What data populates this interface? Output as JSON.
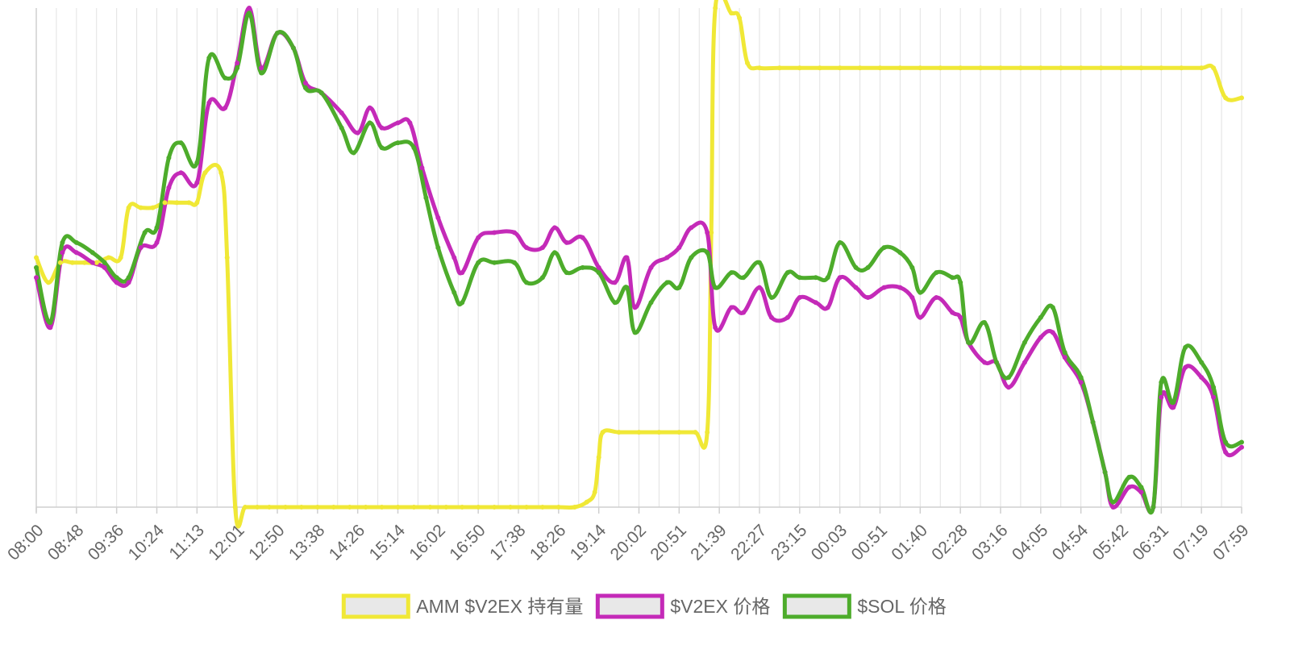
{
  "chart_data": {
    "type": "line",
    "title": "",
    "xlabel": "",
    "ylabel": "",
    "grid": {
      "vertical": true,
      "horizontal": false
    },
    "legend_position": "bottom-center",
    "x_tick_labels": [
      "08:00",
      "08:48",
      "09:36",
      "10:24",
      "11:13",
      "12:01",
      "12:50",
      "13:38",
      "14:26",
      "15:14",
      "16:02",
      "16:50",
      "17:38",
      "18:26",
      "19:14",
      "20:02",
      "20:51",
      "21:39",
      "22:27",
      "23:15",
      "00:03",
      "00:51",
      "01:40",
      "02:28",
      "03:16",
      "04:05",
      "04:54",
      "05:42",
      "06:31",
      "07:19",
      "07:59"
    ],
    "y_scale": "normalized 0-100 (no printed y axis)",
    "ylim": [
      0,
      100
    ],
    "series": [
      {
        "name": "AMM $V2EX 持有量",
        "color": "#f0e836",
        "legend_fill": "#e8e8e8",
        "points": [
          [
            0,
            50
          ],
          [
            0.3,
            45
          ],
          [
            0.6,
            49
          ],
          [
            0.9,
            49
          ],
          [
            1.2,
            49
          ],
          [
            1.5,
            49
          ],
          [
            1.8,
            50
          ],
          [
            2.1,
            50
          ],
          [
            2.3,
            60
          ],
          [
            2.6,
            60
          ],
          [
            2.9,
            60
          ],
          [
            3.2,
            61
          ],
          [
            3.5,
            61
          ],
          [
            3.8,
            61
          ],
          [
            4.0,
            61
          ],
          [
            4.2,
            67
          ],
          [
            4.6,
            67
          ],
          [
            4.75,
            50
          ],
          [
            4.95,
            0
          ],
          [
            5.2,
            0
          ],
          [
            5.5,
            0
          ],
          [
            5.8,
            0
          ],
          [
            6.2,
            0
          ],
          [
            6.6,
            0
          ],
          [
            7.0,
            0
          ],
          [
            7.4,
            0
          ],
          [
            7.8,
            0
          ],
          [
            8.2,
            0
          ],
          [
            8.6,
            0
          ],
          [
            9.0,
            0
          ],
          [
            9.4,
            0
          ],
          [
            9.8,
            0
          ],
          [
            10.2,
            0
          ],
          [
            10.6,
            0
          ],
          [
            11.0,
            0
          ],
          [
            11.4,
            0
          ],
          [
            11.8,
            0
          ],
          [
            12.2,
            0
          ],
          [
            12.6,
            0
          ],
          [
            13.0,
            0
          ],
          [
            13.4,
            0
          ],
          [
            13.7,
            1
          ],
          [
            13.9,
            3
          ],
          [
            14.0,
            10
          ],
          [
            14.1,
            15
          ],
          [
            14.5,
            15
          ],
          [
            15.0,
            15
          ],
          [
            15.5,
            15
          ],
          [
            16.0,
            15
          ],
          [
            16.4,
            15
          ],
          [
            16.7,
            15
          ],
          [
            16.8,
            55
          ],
          [
            16.9,
            100
          ],
          [
            17.3,
            99
          ],
          [
            17.5,
            98
          ],
          [
            17.7,
            89
          ],
          [
            18.0,
            88
          ],
          [
            18.5,
            88
          ],
          [
            19.0,
            88
          ],
          [
            19.5,
            88
          ],
          [
            20.0,
            88
          ],
          [
            20.5,
            88
          ],
          [
            21.0,
            88
          ],
          [
            21.5,
            88
          ],
          [
            22.0,
            88
          ],
          [
            22.5,
            88
          ],
          [
            23.0,
            88
          ],
          [
            23.5,
            88
          ],
          [
            24.0,
            88
          ],
          [
            24.5,
            88
          ],
          [
            25.0,
            88
          ],
          [
            25.5,
            88
          ],
          [
            26.0,
            88
          ],
          [
            26.5,
            88
          ],
          [
            27.0,
            88
          ],
          [
            27.5,
            88
          ],
          [
            28.0,
            88
          ],
          [
            28.5,
            88
          ],
          [
            29.0,
            88
          ],
          [
            29.3,
            88
          ],
          [
            29.6,
            82
          ],
          [
            30.0,
            82
          ]
        ]
      },
      {
        "name": "$V2EX 价格",
        "color": "#c42ab8",
        "legend_fill": "#e8e8e8",
        "points": [
          [
            0,
            46
          ],
          [
            0.35,
            36
          ],
          [
            0.65,
            51
          ],
          [
            1.0,
            51
          ],
          [
            1.4,
            49
          ],
          [
            1.7,
            48
          ],
          [
            2.0,
            45
          ],
          [
            2.3,
            45
          ],
          [
            2.6,
            52
          ],
          [
            3.0,
            53
          ],
          [
            3.3,
            64
          ],
          [
            3.6,
            67
          ],
          [
            4.0,
            65
          ],
          [
            4.3,
            81
          ],
          [
            4.7,
            80
          ],
          [
            5.0,
            89
          ],
          [
            5.3,
            100
          ],
          [
            5.6,
            88
          ],
          [
            6.0,
            95
          ],
          [
            6.4,
            92
          ],
          [
            6.7,
            85
          ],
          [
            7.1,
            83
          ],
          [
            7.6,
            79
          ],
          [
            8.0,
            75
          ],
          [
            8.3,
            80
          ],
          [
            8.6,
            76
          ],
          [
            9.0,
            77
          ],
          [
            9.3,
            77
          ],
          [
            9.6,
            68
          ],
          [
            10.0,
            58
          ],
          [
            10.4,
            50
          ],
          [
            10.6,
            47
          ],
          [
            11.0,
            54
          ],
          [
            11.4,
            55
          ],
          [
            11.9,
            55
          ],
          [
            12.2,
            52
          ],
          [
            12.6,
            52
          ],
          [
            12.9,
            56
          ],
          [
            13.2,
            53
          ],
          [
            13.6,
            54
          ],
          [
            14.0,
            48
          ],
          [
            14.4,
            45
          ],
          [
            14.7,
            50
          ],
          [
            14.9,
            40
          ],
          [
            15.3,
            48
          ],
          [
            15.7,
            50
          ],
          [
            16.0,
            52
          ],
          [
            16.3,
            56
          ],
          [
            16.7,
            55
          ],
          [
            16.9,
            36
          ],
          [
            17.3,
            40
          ],
          [
            17.6,
            39
          ],
          [
            18.0,
            44
          ],
          [
            18.3,
            38
          ],
          [
            18.7,
            38
          ],
          [
            19.0,
            42
          ],
          [
            19.4,
            41
          ],
          [
            19.7,
            40
          ],
          [
            20.0,
            46
          ],
          [
            20.4,
            44
          ],
          [
            20.7,
            42
          ],
          [
            21.1,
            44
          ],
          [
            21.5,
            44
          ],
          [
            21.8,
            42
          ],
          [
            22.0,
            38
          ],
          [
            22.4,
            42
          ],
          [
            22.8,
            39
          ],
          [
            23.0,
            38
          ],
          [
            23.2,
            33
          ],
          [
            23.6,
            29
          ],
          [
            23.9,
            29
          ],
          [
            24.2,
            24
          ],
          [
            24.6,
            29
          ],
          [
            25.0,
            34
          ],
          [
            25.3,
            35
          ],
          [
            25.6,
            30
          ],
          [
            26.0,
            25
          ],
          [
            26.3,
            17
          ],
          [
            26.6,
            7
          ],
          [
            26.8,
            0
          ],
          [
            27.2,
            4
          ],
          [
            27.5,
            3
          ],
          [
            27.8,
            0
          ],
          [
            28.0,
            22
          ],
          [
            28.3,
            20
          ],
          [
            28.6,
            28
          ],
          [
            29.0,
            26
          ],
          [
            29.3,
            22
          ],
          [
            29.6,
            11
          ],
          [
            30.0,
            12
          ]
        ]
      },
      {
        "name": "$SOL 价格",
        "color": "#4dac2b",
        "legend_fill": "#e8e8e8",
        "points": [
          [
            0,
            48
          ],
          [
            0.35,
            37
          ],
          [
            0.65,
            53
          ],
          [
            1.0,
            53
          ],
          [
            1.4,
            51
          ],
          [
            1.7,
            49
          ],
          [
            2.0,
            46
          ],
          [
            2.3,
            46
          ],
          [
            2.7,
            55
          ],
          [
            3.0,
            56
          ],
          [
            3.3,
            70
          ],
          [
            3.6,
            73
          ],
          [
            4.0,
            69
          ],
          [
            4.3,
            90
          ],
          [
            4.7,
            86
          ],
          [
            5.0,
            88
          ],
          [
            5.3,
            99
          ],
          [
            5.6,
            87
          ],
          [
            6.0,
            95
          ],
          [
            6.4,
            92
          ],
          [
            6.7,
            84
          ],
          [
            7.1,
            83
          ],
          [
            7.6,
            76
          ],
          [
            7.9,
            71
          ],
          [
            8.3,
            77
          ],
          [
            8.6,
            72
          ],
          [
            9.0,
            73
          ],
          [
            9.4,
            72
          ],
          [
            9.7,
            62
          ],
          [
            10.0,
            52
          ],
          [
            10.4,
            43
          ],
          [
            10.6,
            41
          ],
          [
            11.0,
            49
          ],
          [
            11.4,
            49
          ],
          [
            11.9,
            49
          ],
          [
            12.2,
            45
          ],
          [
            12.6,
            46
          ],
          [
            12.9,
            51
          ],
          [
            13.2,
            47
          ],
          [
            13.6,
            48
          ],
          [
            14.0,
            47
          ],
          [
            14.4,
            41
          ],
          [
            14.7,
            44
          ],
          [
            14.9,
            35
          ],
          [
            15.3,
            41
          ],
          [
            15.7,
            45
          ],
          [
            16.0,
            44
          ],
          [
            16.3,
            50
          ],
          [
            16.7,
            51
          ],
          [
            16.9,
            44
          ],
          [
            17.3,
            47
          ],
          [
            17.6,
            46
          ],
          [
            18.0,
            49
          ],
          [
            18.3,
            42
          ],
          [
            18.7,
            47
          ],
          [
            19.0,
            46
          ],
          [
            19.4,
            46
          ],
          [
            19.7,
            46
          ],
          [
            20.0,
            53
          ],
          [
            20.4,
            48
          ],
          [
            20.7,
            48
          ],
          [
            21.1,
            52
          ],
          [
            21.5,
            51
          ],
          [
            21.8,
            48
          ],
          [
            22.0,
            43
          ],
          [
            22.4,
            47
          ],
          [
            22.8,
            46
          ],
          [
            23.0,
            45
          ],
          [
            23.2,
            33
          ],
          [
            23.6,
            37
          ],
          [
            23.9,
            29
          ],
          [
            24.2,
            26
          ],
          [
            24.6,
            33
          ],
          [
            25.0,
            38
          ],
          [
            25.3,
            40
          ],
          [
            25.6,
            31
          ],
          [
            26.0,
            26
          ],
          [
            26.3,
            17
          ],
          [
            26.6,
            7
          ],
          [
            26.8,
            1
          ],
          [
            27.2,
            6
          ],
          [
            27.5,
            4
          ],
          [
            27.8,
            0
          ],
          [
            28.0,
            25
          ],
          [
            28.3,
            21
          ],
          [
            28.6,
            32
          ],
          [
            29.0,
            29
          ],
          [
            29.3,
            24
          ],
          [
            29.6,
            13
          ],
          [
            30.0,
            13
          ]
        ]
      }
    ]
  }
}
